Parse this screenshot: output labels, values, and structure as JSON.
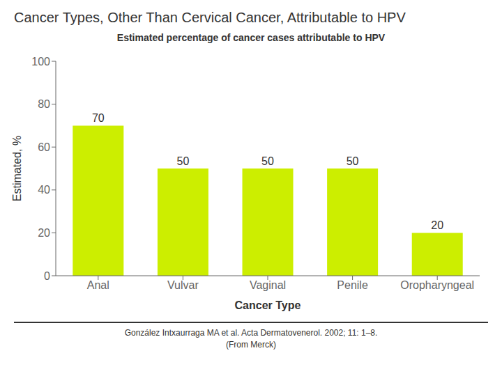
{
  "chart_data": {
    "type": "bar",
    "title": "Cancer Types, Other Than Cervical Cancer, Attributable to HPV",
    "subtitle": "Estimated percentage of cancer cases attributable to HPV",
    "xlabel": "Cancer Type",
    "ylabel": "Estimated, %",
    "categories": [
      "Anal",
      "Vulvar",
      "Vaginal",
      "Penile",
      "Oropharyngeal"
    ],
    "values": [
      70,
      50,
      50,
      50,
      20
    ],
    "color": "#CCEE00",
    "ylim": [
      0,
      100
    ],
    "yticks": [
      0,
      20,
      40,
      60,
      80,
      100
    ],
    "grid": false,
    "data_labels": true,
    "annotations": [
      "González Intxaurraga MA et al. Acta Dermatovenerol. 2002; 11: 1–8.",
      "(From Merck)"
    ]
  }
}
